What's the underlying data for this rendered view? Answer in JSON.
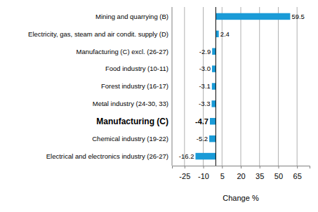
{
  "chart_data": {
    "type": "bar",
    "orientation": "horizontal",
    "x_label": "Change %",
    "categories": [
      "Mining and quarrying (B)",
      "Electricity, gas, steam and air condit. supply (D)",
      "Manufacturing (C) excl. (26-27)",
      "Food industry (10-11)",
      "Forest industry (16-17)",
      "Metal industry (24-30, 33)",
      "Manufacturing (C)",
      "Chemical industry (19-22)",
      "Electrical and electronics industry (26-27)"
    ],
    "values": [
      59.5,
      2.4,
      -2.9,
      -3.0,
      -3.1,
      -3.3,
      -4.7,
      -5.2,
      -16.2
    ],
    "value_labels": [
      "59.5",
      "2.4",
      "-2.9",
      "-3.0",
      "-3.1",
      "-3.3",
      "-4.7",
      "-5.2",
      "-16.2"
    ],
    "color": "#1a9bd7",
    "xlim": [
      -35,
      75
    ],
    "xticks": [
      -25,
      -10,
      5,
      20,
      35,
      50,
      65
    ],
    "grid": true,
    "data_labels": true
  }
}
